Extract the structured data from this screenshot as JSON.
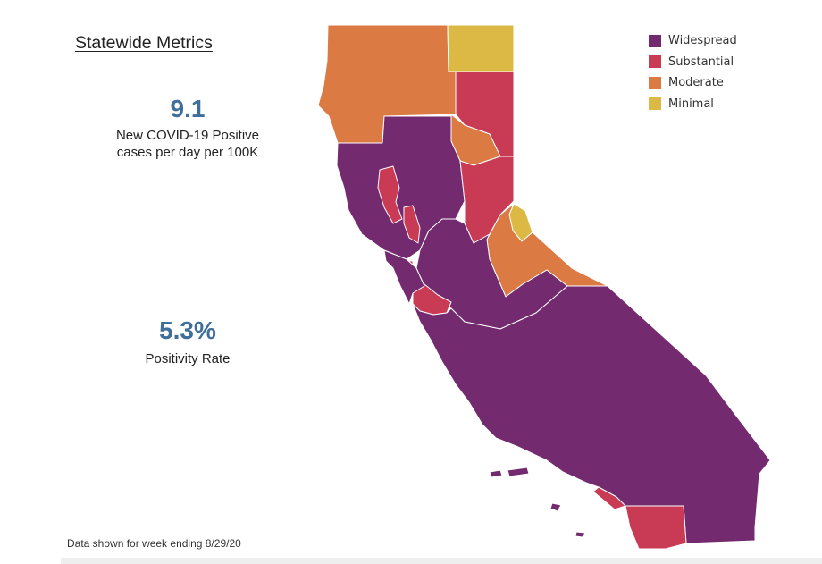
{
  "title": "Statewide Metrics",
  "metrics": [
    {
      "value": "9.1",
      "label": "New COVID-19 Positive\ncases per day per 100K"
    },
    {
      "value": "5.3%",
      "label": "Positivity Rate"
    }
  ],
  "footnote": "Data shown for week ending 8/29/20",
  "legend": [
    {
      "label": "Widespread",
      "color": "#742a6f"
    },
    {
      "label": "Substantial",
      "color": "#c93a55"
    },
    {
      "label": "Moderate",
      "color": "#dc7a44"
    },
    {
      "label": "Minimal",
      "color": "#dcb944"
    }
  ],
  "tiers": {
    "widespread": "#742a6f",
    "substantial": "#c93a55",
    "moderate": "#dc7a44",
    "minimal": "#dcb944"
  }
}
